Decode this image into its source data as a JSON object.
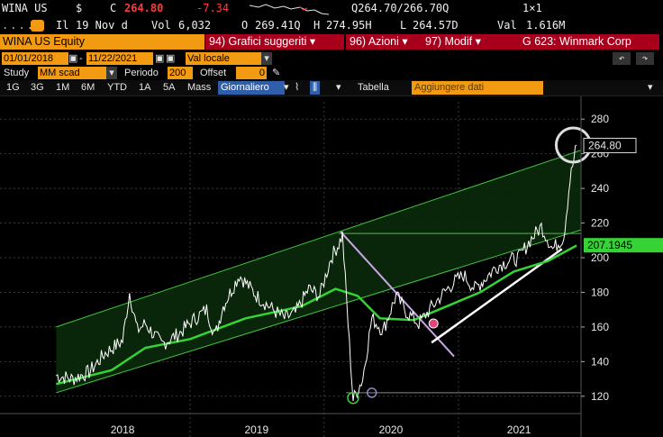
{
  "quote": {
    "ticker": "WINA US",
    "currency": "$",
    "close_label": "C",
    "close": "264.80",
    "change": "-7.34",
    "bid_ask": "Q264.70/266.70Q",
    "size": "1×1",
    "il_label": "Il",
    "date": "19 Nov d",
    "vol_label": "Vol",
    "volume": "6,032",
    "open_label": "O",
    "open": "269.41Q",
    "high_label": "H",
    "high": "274.95H",
    "low_label": "L",
    "low": "264.57D",
    "val_label": "Val",
    "value": "1.616M"
  },
  "toolbar": {
    "security": "WINA US Equity",
    "suggested_charts": "94) Grafici suggeriti",
    "actions": "96) Azioni",
    "modify": "97) Modif",
    "chart_id": "G 623: Winmark Corp"
  },
  "range": {
    "start": "01/01/2018",
    "end": "11/22/2021",
    "currency_mode": "Val locale",
    "study_label": "Study",
    "study_value": "MM scad",
    "period_label": "Periodo",
    "period_value": "200",
    "offset_label": "Offset",
    "offset_value": "0"
  },
  "timeframes": [
    "1G",
    "3G",
    "1M",
    "6M",
    "YTD",
    "1A",
    "5A",
    "Mass"
  ],
  "interval": "Giornaliero",
  "table_label": "Tabella",
  "add_data_placeholder": "Aggiungere dati",
  "colors": {
    "price_line": "#ffffff",
    "moving_average": "#35d335",
    "channel": "#3fc83f",
    "channel_fill": "#0b2a0b",
    "trend_purple": "#c9a6e8",
    "accent_amber": "#f29a12",
    "alert_red": "#a8001c"
  },
  "chart_data": {
    "type": "line",
    "x_labels": [
      "2018",
      "2019",
      "2020",
      "2021"
    ],
    "ylim": [
      110,
      290
    ],
    "y_ticks": [
      120,
      140,
      160,
      180,
      200,
      220,
      240,
      260,
      280
    ],
    "last_price_label": "264.80",
    "moving_average_label": "207.1945",
    "series": [
      {
        "x": [
          "2018-01-01",
          "2018-02-15",
          "2018-04-01",
          "2018-05-15",
          "2018-07-01",
          "2018-07-20",
          "2018-08-10",
          "2018-09-01",
          "2018-10-15",
          "2018-12-01",
          "2019-01-15",
          "2019-02-15",
          "2019-03-10",
          "2019-04-01",
          "2019-05-15",
          "2019-07-01",
          "2019-08-15",
          "2019-09-15",
          "2019-10-15",
          "2019-11-20",
          "2019-12-20",
          "2020-01-20",
          "2020-02-10",
          "2020-02-20",
          "2020-03-10",
          "2020-03-20",
          "2020-04-15",
          "2020-05-10",
          "2020-06-10",
          "2020-07-15",
          "2020-08-15",
          "2020-09-15",
          "2020-10-15",
          "2020-11-15",
          "2020-12-15",
          "2021-01-15",
          "2021-02-15",
          "2021-03-15",
          "2021-04-15",
          "2021-05-15",
          "2021-06-15",
          "2021-07-15",
          "2021-08-15",
          "2021-09-15",
          "2021-10-15",
          "2021-11-01",
          "2021-11-19"
        ],
        "y": [
          132,
          130,
          134,
          145,
          152,
          180,
          158,
          162,
          150,
          156,
          165,
          170,
          155,
          172,
          190,
          178,
          170,
          165,
          168,
          182,
          178,
          200,
          208,
          213,
          150,
          118,
          130,
          165,
          158,
          178,
          168,
          162,
          170,
          178,
          185,
          190,
          182,
          188,
          195,
          198,
          200,
          210,
          218,
          205,
          212,
          245,
          265
        ]
      },
      {
        "x": [
          "2018-01-01",
          "2018-06-01",
          "2018-09-01",
          "2019-01-01",
          "2019-06-01",
          "2019-11-01",
          "2020-02-01",
          "2020-04-01",
          "2020-06-01",
          "2020-09-01",
          "2020-12-01",
          "2021-03-01",
          "2021-06-01",
          "2021-09-01",
          "2021-11-19"
        ],
        "y": [
          127,
          135,
          148,
          153,
          165,
          172,
          182,
          178,
          165,
          164,
          172,
          180,
          192,
          198,
          207
        ]
      }
    ]
  }
}
